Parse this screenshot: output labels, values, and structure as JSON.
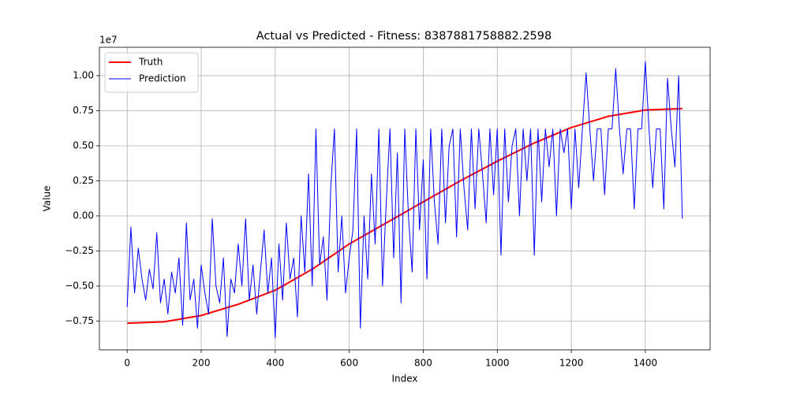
{
  "chart_data": {
    "type": "line",
    "title": "Actual vs Predicted - Fitness: 8387881758882.2598",
    "xlabel": "Index",
    "ylabel": "Value",
    "y_offset_label": "1e7",
    "xlim": [
      -75,
      1575
    ],
    "ylim": [
      -0.955,
      1.202
    ],
    "xticks": [
      0,
      200,
      400,
      600,
      800,
      1000,
      1200,
      1400
    ],
    "yticks": [
      {
        "value": -0.75,
        "label": "−0.75"
      },
      {
        "value": -0.5,
        "label": "−0.50"
      },
      {
        "value": -0.25,
        "label": "−0.25"
      },
      {
        "value": 0,
        "label": "0.00"
      },
      {
        "value": 0.25,
        "label": "0.25"
      },
      {
        "value": 0.5,
        "label": "0.50"
      },
      {
        "value": 0.75,
        "label": "0.75"
      },
      {
        "value": 1,
        "label": "1.00"
      }
    ],
    "grid": true,
    "legend": "upper left",
    "series": [
      {
        "name": "Truth",
        "color": "#ff0000",
        "width": 2,
        "x": [
          0,
          100,
          200,
          300,
          400,
          500,
          600,
          700,
          800,
          900,
          1000,
          1100,
          1200,
          1300,
          1400,
          1500
        ],
        "values": [
          -0.765,
          -0.755,
          -0.71,
          -0.63,
          -0.53,
          -0.38,
          -0.2,
          -0.05,
          0.1,
          0.25,
          0.39,
          0.52,
          0.63,
          0.71,
          0.755,
          0.765
        ]
      },
      {
        "name": "Prediction",
        "color": "#0000ff",
        "width": 1,
        "x": [
          0,
          10,
          20,
          30,
          40,
          50,
          60,
          70,
          80,
          90,
          100,
          110,
          120,
          130,
          140,
          150,
          160,
          170,
          180,
          190,
          200,
          210,
          220,
          230,
          240,
          250,
          260,
          270,
          280,
          290,
          300,
          310,
          320,
          330,
          340,
          350,
          360,
          370,
          380,
          390,
          400,
          410,
          420,
          430,
          440,
          450,
          460,
          470,
          480,
          490,
          500,
          510,
          520,
          530,
          540,
          550,
          560,
          570,
          580,
          590,
          600,
          610,
          620,
          630,
          640,
          650,
          660,
          670,
          680,
          690,
          700,
          710,
          720,
          730,
          740,
          750,
          760,
          770,
          780,
          790,
          800,
          810,
          820,
          830,
          840,
          850,
          860,
          870,
          880,
          890,
          900,
          910,
          920,
          930,
          940,
          950,
          960,
          970,
          980,
          990,
          1000,
          1010,
          1020,
          1030,
          1040,
          1050,
          1060,
          1070,
          1080,
          1090,
          1100,
          1110,
          1120,
          1130,
          1140,
          1150,
          1160,
          1170,
          1180,
          1190,
          1200,
          1210,
          1220,
          1230,
          1240,
          1250,
          1260,
          1270,
          1280,
          1290,
          1300,
          1310,
          1320,
          1330,
          1340,
          1350,
          1360,
          1370,
          1380,
          1390,
          1400,
          1410,
          1420,
          1430,
          1440,
          1450,
          1460,
          1470,
          1480,
          1490,
          1500
        ],
        "values": [
          -0.65,
          -0.08,
          -0.55,
          -0.23,
          -0.45,
          -0.6,
          -0.38,
          -0.52,
          -0.12,
          -0.62,
          -0.45,
          -0.7,
          -0.4,
          -0.55,
          -0.3,
          -0.78,
          -0.05,
          -0.6,
          -0.45,
          -0.8,
          -0.35,
          -0.55,
          -0.7,
          -0.02,
          -0.5,
          -0.62,
          -0.3,
          -0.86,
          -0.45,
          -0.55,
          -0.2,
          -0.5,
          -0.02,
          -0.6,
          -0.35,
          -0.7,
          -0.4,
          -0.1,
          -0.55,
          -0.3,
          -0.87,
          -0.2,
          -0.6,
          -0.05,
          -0.45,
          -0.3,
          -0.72,
          0.0,
          -0.4,
          0.3,
          -0.5,
          0.62,
          -0.35,
          -0.15,
          -0.6,
          0.2,
          0.62,
          -0.4,
          0.0,
          -0.55,
          -0.3,
          -0.1,
          0.62,
          -0.8,
          0.0,
          -0.45,
          0.3,
          -0.2,
          0.62,
          -0.5,
          0.1,
          0.62,
          -0.3,
          0.45,
          -0.62,
          0.62,
          0.0,
          -0.4,
          0.62,
          -0.1,
          0.4,
          -0.45,
          0.62,
          0.1,
          -0.2,
          0.62,
          -0.05,
          0.5,
          0.62,
          -0.15,
          0.62,
          0.2,
          -0.1,
          0.62,
          0.05,
          0.62,
          0.3,
          -0.05,
          0.62,
          0.15,
          0.62,
          -0.28,
          0.62,
          0.1,
          0.5,
          0.62,
          0.0,
          0.62,
          0.25,
          0.62,
          -0.28,
          0.62,
          0.1,
          0.62,
          0.35,
          0.62,
          0.0,
          0.62,
          0.45,
          0.62,
          0.05,
          0.62,
          0.2,
          0.62,
          1.02,
          0.62,
          0.25,
          0.62,
          0.62,
          0.15,
          0.62,
          0.62,
          1.05,
          0.62,
          0.3,
          0.62,
          0.62,
          0.05,
          0.62,
          0.62,
          1.1,
          0.62,
          0.2,
          0.62,
          0.62,
          0.05,
          0.98,
          0.62,
          0.35,
          1.0,
          -0.02
        ]
      }
    ]
  }
}
